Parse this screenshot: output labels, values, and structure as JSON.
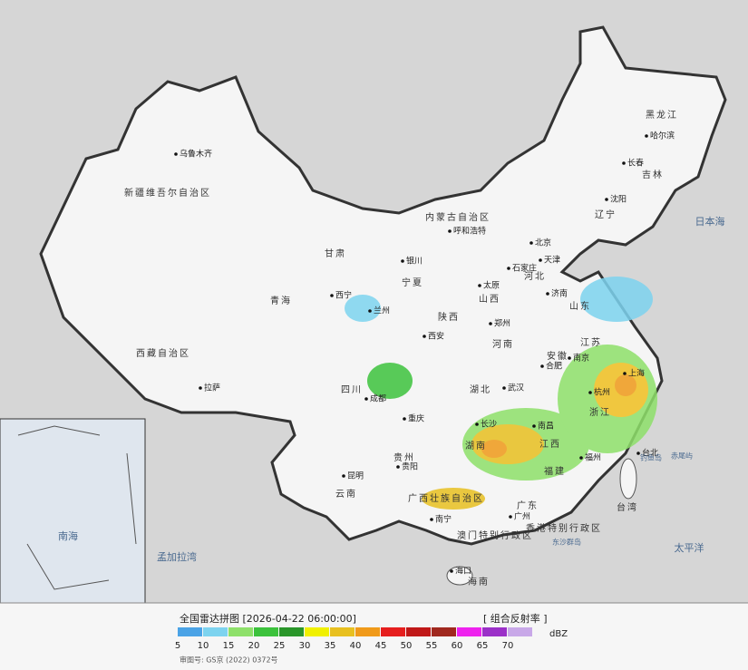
{
  "map": {
    "regions": [
      "新疆维吾尔自治区",
      "西藏自治区",
      "青海",
      "甘肃",
      "内蒙古自治区",
      "宁夏",
      "陕西",
      "山西",
      "河北",
      "山东",
      "河南",
      "四川",
      "湖北",
      "安徽",
      "江苏",
      "浙江",
      "湖南",
      "江西",
      "福建",
      "贵州",
      "云南",
      "广西壮族自治区",
      "广东",
      "海南",
      "黑龙江",
      "吉林",
      "辽宁",
      "台湾",
      "香港特别行政区",
      "澳门特别行政区"
    ],
    "cities": [
      "乌鲁木齐",
      "拉萨",
      "西宁",
      "兰州",
      "银川",
      "呼和浩特",
      "北京",
      "天津",
      "石家庄",
      "太原",
      "济南",
      "郑州",
      "西安",
      "成都",
      "重庆",
      "武汉",
      "合肥",
      "南京",
      "上海",
      "杭州",
      "长沙",
      "南昌",
      "福州",
      "台北",
      "贵阳",
      "昆明",
      "南宁",
      "广州",
      "海口",
      "哈尔滨",
      "长春",
      "沈阳"
    ],
    "seas": [
      "日本海",
      "太平洋",
      "孟加拉湾",
      "南海"
    ],
    "islands": [
      "钓鱼岛",
      "赤尾屿",
      "东沙群岛"
    ]
  },
  "legend": {
    "title": "全国雷达拼图 [2026-04-22 06:00:00]",
    "product": "[ 组合反射率 ]",
    "unit": "dBZ",
    "ticks": [
      5,
      10,
      15,
      20,
      25,
      30,
      35,
      40,
      45,
      50,
      55,
      60,
      65,
      70
    ],
    "colors": [
      "#4ba3e6",
      "#7dd3ef",
      "#8ee06a",
      "#3cc23c",
      "#2a962a",
      "#f0f000",
      "#e8c020",
      "#f09a1a",
      "#e61e1e",
      "#c01818",
      "#a0281e",
      "#ee22ee",
      "#9b30c8",
      "#c8a8e8"
    ]
  },
  "footer": {
    "note": "审图号: GS京 (2022) 0372号"
  }
}
